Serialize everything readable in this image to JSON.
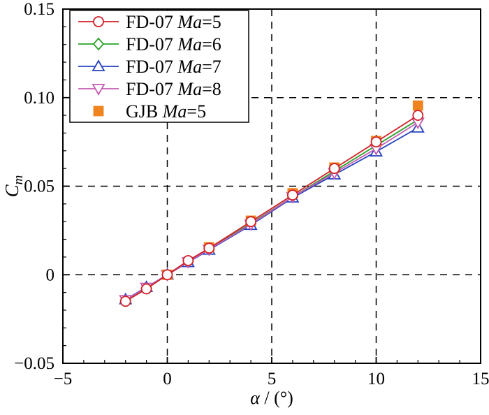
{
  "figure": {
    "background": "#ffffff",
    "frame_color": "#000000",
    "text_color": "#000000"
  },
  "chart_data": {
    "type": "line",
    "title": "",
    "xlabel": "α / (°)",
    "ylabel": {
      "base": "C",
      "sub": "m"
    },
    "xlim": [
      -5,
      15
    ],
    "ylim": [
      -0.05,
      0.15
    ],
    "xticks": [
      -5,
      0,
      5,
      10,
      15
    ],
    "xtick_labels": [
      "−5",
      "0",
      "5",
      "10",
      "15"
    ],
    "yticks": [
      -0.05,
      0,
      0.05,
      0.1,
      0.15
    ],
    "ytick_labels": [
      "−0.05",
      "0",
      "0.05",
      "0.10",
      "0.15"
    ],
    "x_minor_step": 1,
    "y_minor_step": 0.01,
    "grid": true,
    "grid_color": "#000000",
    "grid_style": "dashed",
    "legend_position": "top-left",
    "series": [
      {
        "name": "FD-07 Ma=5",
        "color": "#d02027",
        "marker": "circle",
        "filled": false,
        "line": true,
        "x": [
          -2,
          -1,
          0,
          1,
          2,
          4,
          6,
          8,
          10,
          12
        ],
        "y": [
          -0.015,
          -0.008,
          0,
          0.008,
          0.015,
          0.03,
          0.045,
          0.06,
          0.075,
          0.09
        ]
      },
      {
        "name": "FD-07 Ma=6",
        "color": "#2aa22a",
        "marker": "diamond",
        "filled": false,
        "line": true,
        "x": [
          -2,
          -1,
          0,
          1,
          2,
          4,
          6,
          8,
          10,
          12
        ],
        "y": [
          -0.0145,
          -0.0075,
          0,
          0.0075,
          0.0145,
          0.029,
          0.044,
          0.0585,
          0.073,
          0.0875
        ]
      },
      {
        "name": "FD-07 Ma=7",
        "color": "#2743c0",
        "marker": "triangle-up",
        "filled": false,
        "line": true,
        "x": [
          -2,
          -1,
          0,
          1,
          2,
          4,
          6,
          8,
          10,
          12
        ],
        "y": [
          -0.014,
          -0.007,
          0,
          0.007,
          0.014,
          0.028,
          0.0435,
          0.0565,
          0.0695,
          0.083
        ]
      },
      {
        "name": "FD-07 Ma=8",
        "color": "#c45cb0",
        "marker": "triangle-down",
        "filled": false,
        "line": true,
        "x": [
          -2,
          -1,
          0,
          1,
          2,
          4,
          6,
          8,
          10,
          12
        ],
        "y": [
          -0.0142,
          -0.0072,
          0,
          0.0072,
          0.0143,
          0.0285,
          0.044,
          0.0575,
          0.0712,
          0.086
        ]
      },
      {
        "name": "GJB Ma=5",
        "color": "#f08421",
        "marker": "square",
        "filled": true,
        "line": false,
        "x": [
          0,
          2,
          4,
          6,
          8,
          10,
          12
        ],
        "y": [
          0,
          0.0155,
          0.0305,
          0.046,
          0.0605,
          0.0755,
          0.0955
        ]
      }
    ]
  }
}
